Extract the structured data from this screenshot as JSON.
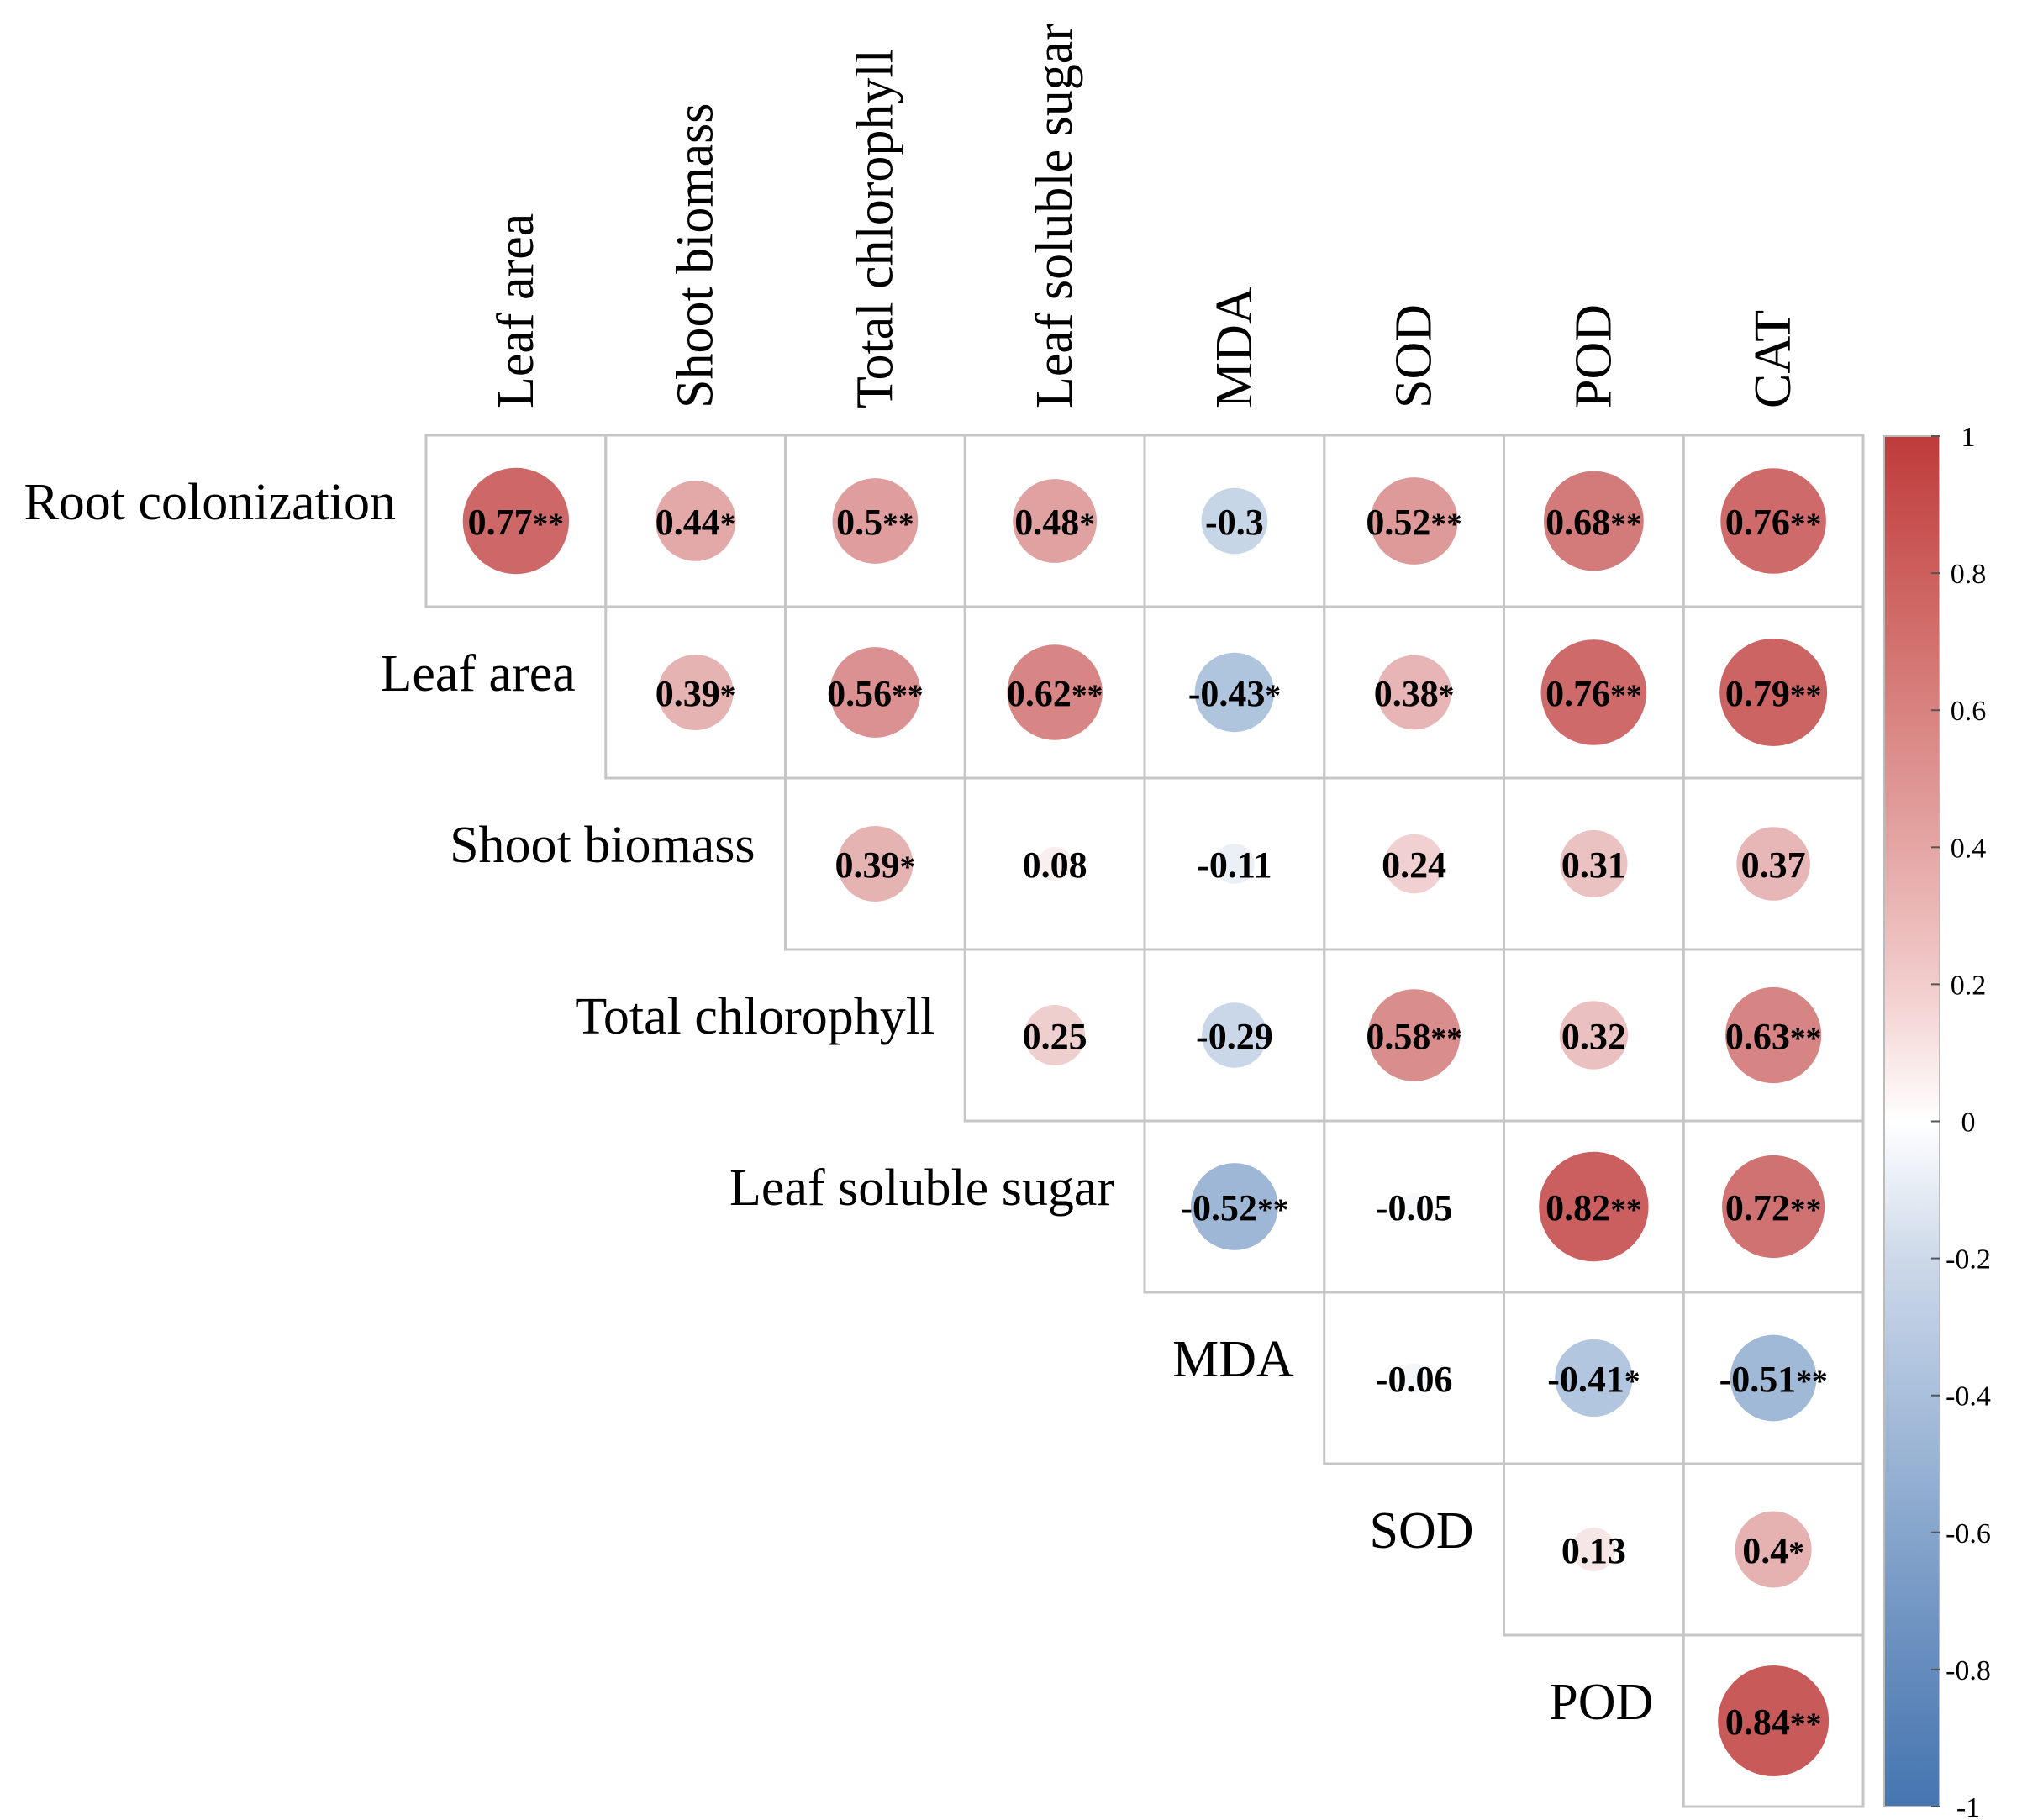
{
  "chart_data": {
    "type": "heatmap",
    "subtype": "correlation-circle-upper-triangle",
    "title": "",
    "column_labels": [
      "Leaf area",
      "Shoot biomass",
      "Total chlorophyll",
      "Leaf soluble sugar",
      "MDA",
      "SOD",
      "POD",
      "CAT"
    ],
    "row_labels": [
      "Root colonization",
      "Leaf area",
      "Shoot biomass",
      "Total chlorophyll",
      "Leaf soluble sugar",
      "MDA",
      "SOD",
      "POD"
    ],
    "cells": [
      {
        "row": 0,
        "col": 0,
        "value": 0.77,
        "label": "0.77",
        "sig": "**"
      },
      {
        "row": 0,
        "col": 1,
        "value": 0.44,
        "label": "0.44",
        "sig": "*"
      },
      {
        "row": 0,
        "col": 2,
        "value": 0.5,
        "label": "0.5",
        "sig": "**"
      },
      {
        "row": 0,
        "col": 3,
        "value": 0.48,
        "label": "0.48",
        "sig": "*"
      },
      {
        "row": 0,
        "col": 4,
        "value": -0.3,
        "label": "-0.3",
        "sig": ""
      },
      {
        "row": 0,
        "col": 5,
        "value": 0.52,
        "label": "0.52",
        "sig": "**"
      },
      {
        "row": 0,
        "col": 6,
        "value": 0.68,
        "label": "0.68",
        "sig": "**"
      },
      {
        "row": 0,
        "col": 7,
        "value": 0.76,
        "label": "0.76",
        "sig": "**"
      },
      {
        "row": 1,
        "col": 1,
        "value": 0.39,
        "label": "0.39",
        "sig": "*"
      },
      {
        "row": 1,
        "col": 2,
        "value": 0.56,
        "label": "0.56",
        "sig": "**"
      },
      {
        "row": 1,
        "col": 3,
        "value": 0.62,
        "label": "0.62",
        "sig": "**"
      },
      {
        "row": 1,
        "col": 4,
        "value": -0.43,
        "label": "-0.43",
        "sig": "*"
      },
      {
        "row": 1,
        "col": 5,
        "value": 0.38,
        "label": "0.38",
        "sig": "*"
      },
      {
        "row": 1,
        "col": 6,
        "value": 0.76,
        "label": "0.76",
        "sig": "**"
      },
      {
        "row": 1,
        "col": 7,
        "value": 0.79,
        "label": "0.79",
        "sig": "**"
      },
      {
        "row": 2,
        "col": 2,
        "value": 0.39,
        "label": "0.39",
        "sig": "*"
      },
      {
        "row": 2,
        "col": 3,
        "value": 0.08,
        "label": "0.08",
        "sig": ""
      },
      {
        "row": 2,
        "col": 4,
        "value": -0.11,
        "label": "-0.11",
        "sig": ""
      },
      {
        "row": 2,
        "col": 5,
        "value": 0.24,
        "label": "0.24",
        "sig": ""
      },
      {
        "row": 2,
        "col": 6,
        "value": 0.31,
        "label": "0.31",
        "sig": ""
      },
      {
        "row": 2,
        "col": 7,
        "value": 0.37,
        "label": "0.37",
        "sig": ""
      },
      {
        "row": 3,
        "col": 3,
        "value": 0.25,
        "label": "0.25",
        "sig": ""
      },
      {
        "row": 3,
        "col": 4,
        "value": -0.29,
        "label": "-0.29",
        "sig": ""
      },
      {
        "row": 3,
        "col": 5,
        "value": 0.58,
        "label": "0.58",
        "sig": "**"
      },
      {
        "row": 3,
        "col": 6,
        "value": 0.32,
        "label": "0.32",
        "sig": ""
      },
      {
        "row": 3,
        "col": 7,
        "value": 0.63,
        "label": "0.63",
        "sig": "**"
      },
      {
        "row": 4,
        "col": 4,
        "value": -0.52,
        "label": "-0.52",
        "sig": "**"
      },
      {
        "row": 4,
        "col": 5,
        "value": -0.05,
        "label": "-0.05",
        "sig": ""
      },
      {
        "row": 4,
        "col": 6,
        "value": 0.82,
        "label": "0.82",
        "sig": "**"
      },
      {
        "row": 4,
        "col": 7,
        "value": 0.72,
        "label": "0.72",
        "sig": "**"
      },
      {
        "row": 5,
        "col": 5,
        "value": -0.06,
        "label": "-0.06",
        "sig": ""
      },
      {
        "row": 5,
        "col": 6,
        "value": -0.41,
        "label": "-0.41",
        "sig": "*"
      },
      {
        "row": 5,
        "col": 7,
        "value": -0.51,
        "label": "-0.51",
        "sig": "**"
      },
      {
        "row": 6,
        "col": 6,
        "value": 0.13,
        "label": "0.13",
        "sig": ""
      },
      {
        "row": 6,
        "col": 7,
        "value": 0.4,
        "label": "0.4",
        "sig": "*"
      },
      {
        "row": 7,
        "col": 7,
        "value": 0.84,
        "label": "0.84",
        "sig": "**"
      }
    ],
    "value_range": [
      -1,
      1
    ],
    "colorbar": {
      "ticks": [
        1,
        0.8,
        0.6,
        0.4,
        0.2,
        0,
        -0.2,
        -0.4,
        -0.6,
        -0.8,
        -1
      ],
      "tick_labels": [
        "1",
        "0.8",
        "0.6",
        "0.4",
        "0.2",
        "0",
        "-0.2",
        "-0.4",
        "-0.6",
        "-0.8",
        "-1"
      ],
      "colors": {
        "negative": "#4575b0",
        "neutral": "#ffffff",
        "positive": "#bf3b3b"
      },
      "placement": "right"
    }
  }
}
